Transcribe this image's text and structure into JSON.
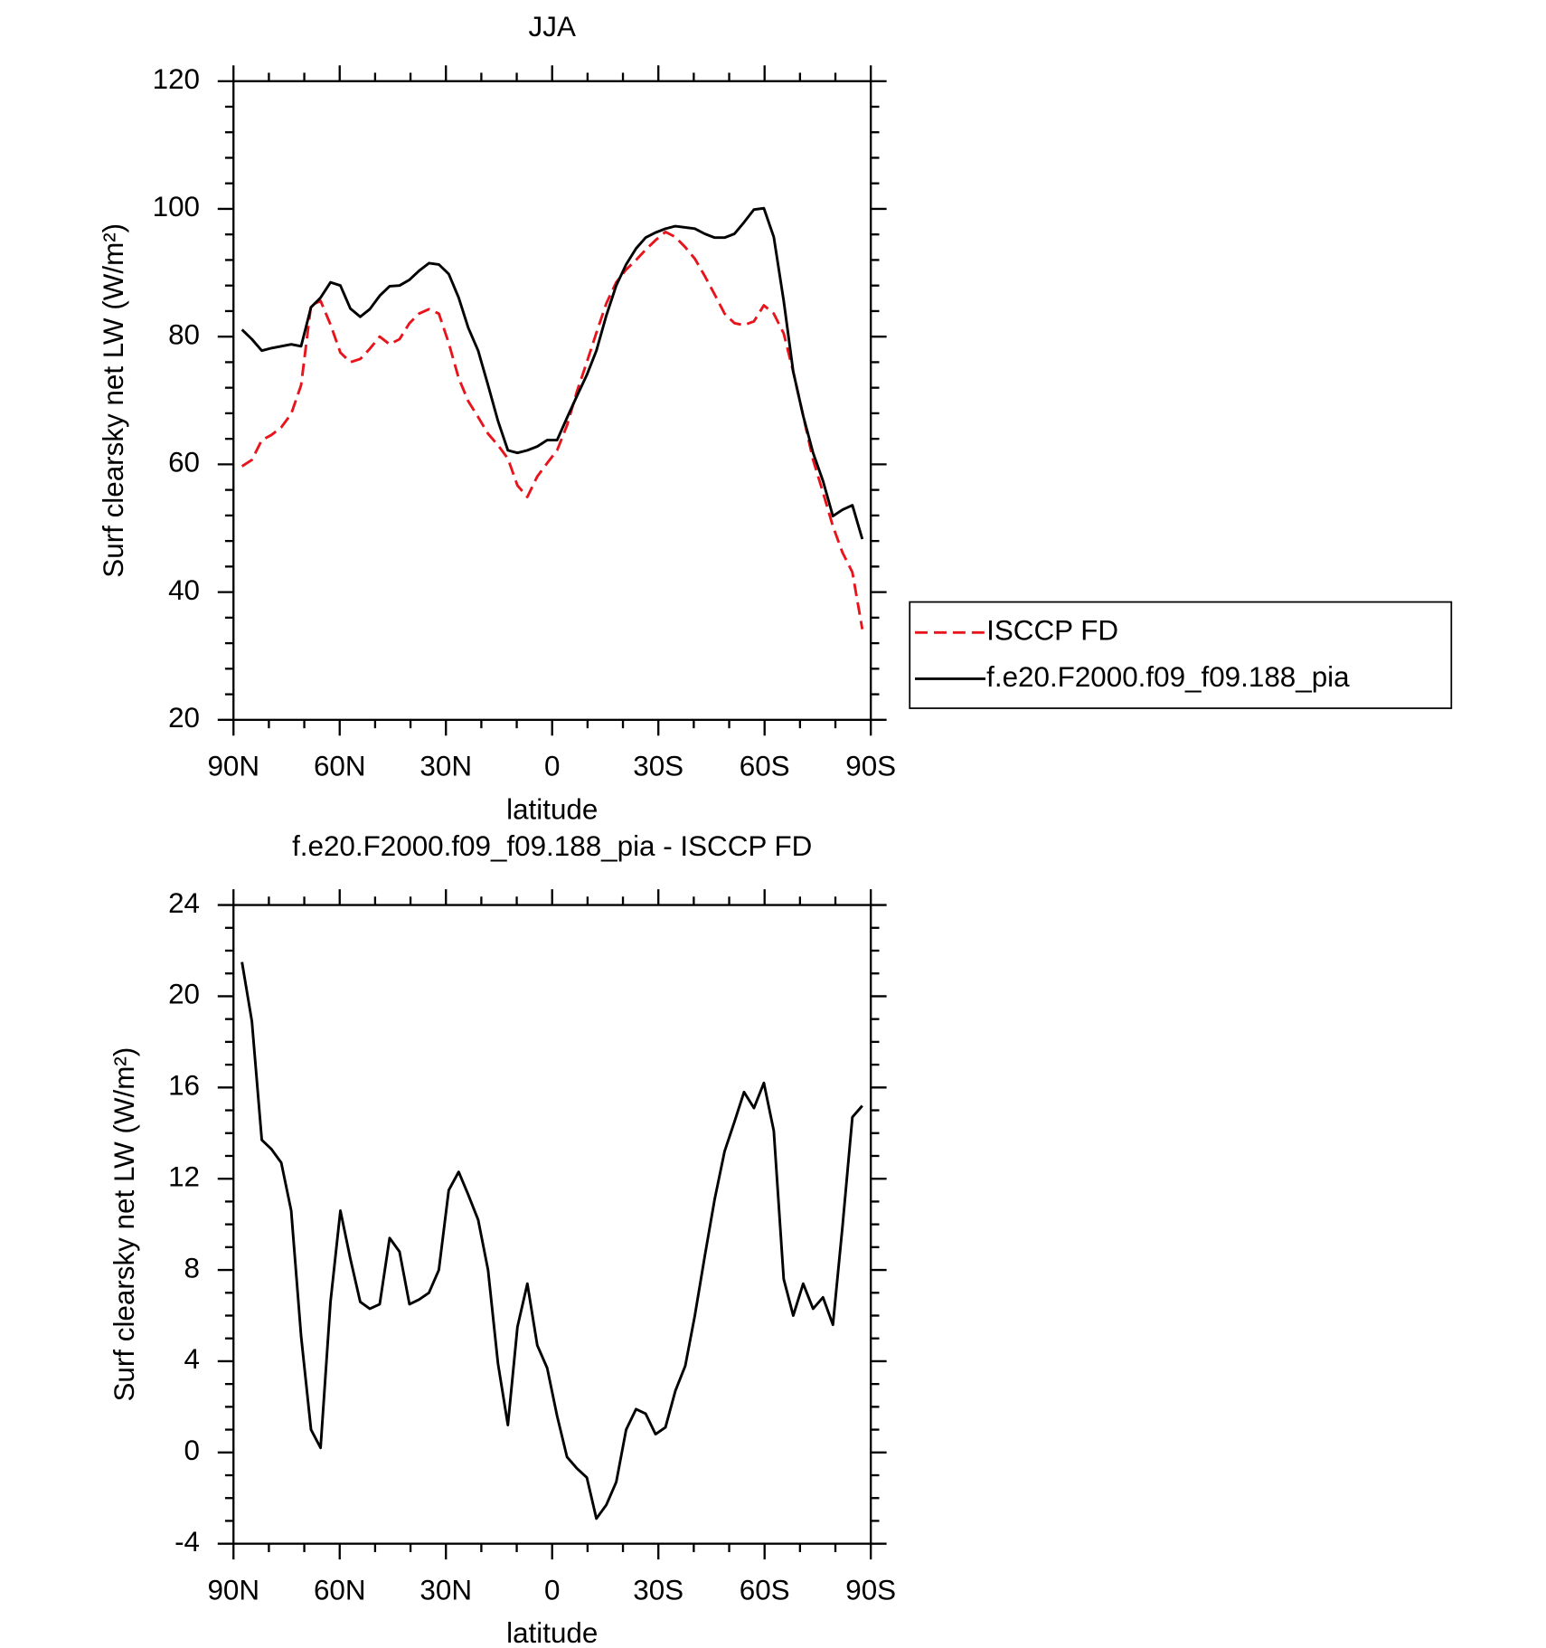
{
  "chart_data": [
    {
      "type": "line",
      "title": "JJA",
      "xlabel": "latitude",
      "ylabel": "Surf clearsky net LW (W/m²)",
      "x": [
        87.6,
        84.8,
        82.0,
        79.3,
        76.5,
        73.7,
        70.9,
        68.1,
        65.4,
        62.6,
        59.8,
        57.0,
        54.2,
        51.5,
        48.7,
        45.9,
        43.1,
        40.3,
        37.6,
        34.8,
        32.0,
        29.2,
        26.4,
        23.7,
        20.9,
        18.1,
        15.3,
        12.5,
        9.8,
        7.0,
        4.2,
        1.4,
        -1.4,
        -4.2,
        -7.0,
        -9.8,
        -12.5,
        -15.3,
        -18.1,
        -20.9,
        -23.7,
        -26.4,
        -29.2,
        -32.0,
        -34.8,
        -37.6,
        -40.3,
        -43.1,
        -45.9,
        -48.7,
        -51.5,
        -54.2,
        -57.0,
        -59.8,
        -62.6,
        -65.4,
        -68.1,
        -70.9,
        -73.7,
        -76.5,
        -79.3,
        -82.0,
        -84.8,
        -87.6
      ],
      "series": [
        {
          "name": "ISCCP FD",
          "color": "#e8141c",
          "linestyle": "dashed",
          "values": [
            59.7,
            60.7,
            63.8,
            64.6,
            65.8,
            67.9,
            72.4,
            84.9,
            85.6,
            81.9,
            77.5,
            76.0,
            76.5,
            78.1,
            80.0,
            78.8,
            79.6,
            82.1,
            83.6,
            84.3,
            83.6,
            79.0,
            73.5,
            69.9,
            67.4,
            64.8,
            63.0,
            60.9,
            56.7,
            54.9,
            58.1,
            60.2,
            62.2,
            66.1,
            71.4,
            76.0,
            80.6,
            85.2,
            88.5,
            90.5,
            92.0,
            93.6,
            95.1,
            96.4,
            95.6,
            94.0,
            92.2,
            89.5,
            86.6,
            83.6,
            82.1,
            81.8,
            82.4,
            84.9,
            83.6,
            80.5,
            74.5,
            67.6,
            60.7,
            55.6,
            50.3,
            46.2,
            43.1,
            34.2
          ]
        },
        {
          "name": "f.e20.F2000.f09_f09.188_pia",
          "color": "#000000",
          "linestyle": "solid",
          "values": [
            81.1,
            79.6,
            77.8,
            78.2,
            78.5,
            78.8,
            78.5,
            84.6,
            86.1,
            88.5,
            88.0,
            84.4,
            83.1,
            84.3,
            86.4,
            87.9,
            88.0,
            88.9,
            90.3,
            91.5,
            91.3,
            89.8,
            86.1,
            81.4,
            77.8,
            72.4,
            66.8,
            62.2,
            61.8,
            62.2,
            62.8,
            63.8,
            63.8,
            67.3,
            70.7,
            74.0,
            77.8,
            83.3,
            88.0,
            91.3,
            93.8,
            95.5,
            96.3,
            96.9,
            97.3,
            97.1,
            96.9,
            96.1,
            95.5,
            95.5,
            96.1,
            97.9,
            99.9,
            100.1,
            95.6,
            85.6,
            74.5,
            67.6,
            61.8,
            57.4,
            51.9,
            52.9,
            53.6,
            48.3
          ]
        }
      ],
      "xlim": [
        90,
        -90
      ],
      "xticks": [
        {
          "value": 90,
          "label": "90N"
        },
        {
          "value": 60,
          "label": "60N"
        },
        {
          "value": 30,
          "label": "30N"
        },
        0,
        {
          "value": -30,
          "label": "30S"
        },
        {
          "value": -60,
          "label": "60S"
        },
        {
          "value": -90,
          "label": "90S"
        }
      ],
      "xminor": 2,
      "ylim": [
        20,
        120
      ],
      "yticks": [
        20,
        40,
        60,
        80,
        100,
        120
      ],
      "yminor": 4,
      "legend": "right"
    },
    {
      "type": "line",
      "title": "f.e20.F2000.f09_f09.188_pia - ISCCP FD",
      "xlabel": "latitude",
      "ylabel": "Surf clearsky net LW (W/m²)",
      "x": [
        87.6,
        84.8,
        82.0,
        79.3,
        76.5,
        73.7,
        70.9,
        68.1,
        65.4,
        62.6,
        59.8,
        57.0,
        54.2,
        51.5,
        48.7,
        45.9,
        43.1,
        40.3,
        37.6,
        34.8,
        32.0,
        29.2,
        26.4,
        23.7,
        20.9,
        18.1,
        15.3,
        12.5,
        9.8,
        7.0,
        4.2,
        1.4,
        -1.4,
        -4.2,
        -7.0,
        -9.8,
        -12.5,
        -15.3,
        -18.1,
        -20.9,
        -23.7,
        -26.4,
        -29.2,
        -32.0,
        -34.8,
        -37.6,
        -40.3,
        -43.1,
        -45.9,
        -48.7,
        -51.5,
        -54.2,
        -57.0,
        -59.8,
        -62.6,
        -65.4,
        -68.1,
        -70.9,
        -73.7,
        -76.5,
        -79.3,
        -82.0,
        -84.8,
        -87.6
      ],
      "series": [
        {
          "color": "#000000",
          "linestyle": "solid",
          "values": [
            21.5,
            18.9,
            13.7,
            13.3,
            12.7,
            10.6,
            5.1,
            1.0,
            0.2,
            6.6,
            10.6,
            8.5,
            6.6,
            6.3,
            6.5,
            9.4,
            8.8,
            6.5,
            6.7,
            7.0,
            8.0,
            11.5,
            12.3,
            11.3,
            10.2,
            8.0,
            3.9,
            1.2,
            5.5,
            7.4,
            4.7,
            3.7,
            1.6,
            -0.2,
            -0.7,
            -1.1,
            -2.9,
            -2.3,
            -1.3,
            1.0,
            1.9,
            1.7,
            0.8,
            1.1,
            2.7,
            3.8,
            6.0,
            8.6,
            11.1,
            13.2,
            14.5,
            15.8,
            15.1,
            16.2,
            14.1,
            7.6,
            6.0,
            7.4,
            6.3,
            6.8,
            5.6,
            9.9,
            14.7,
            15.2
          ]
        }
      ],
      "xlim": [
        90,
        -90
      ],
      "xticks": [
        {
          "value": 90,
          "label": "90N"
        },
        {
          "value": 60,
          "label": "60N"
        },
        {
          "value": 30,
          "label": "30N"
        },
        0,
        {
          "value": -30,
          "label": "30S"
        },
        {
          "value": -60,
          "label": "60S"
        },
        {
          "value": -90,
          "label": "90S"
        }
      ],
      "xminor": 2,
      "ylim": [
        -4,
        24
      ],
      "yticks": [
        -4,
        0,
        4,
        8,
        12,
        16,
        20,
        24
      ],
      "yminor": 3
    }
  ]
}
